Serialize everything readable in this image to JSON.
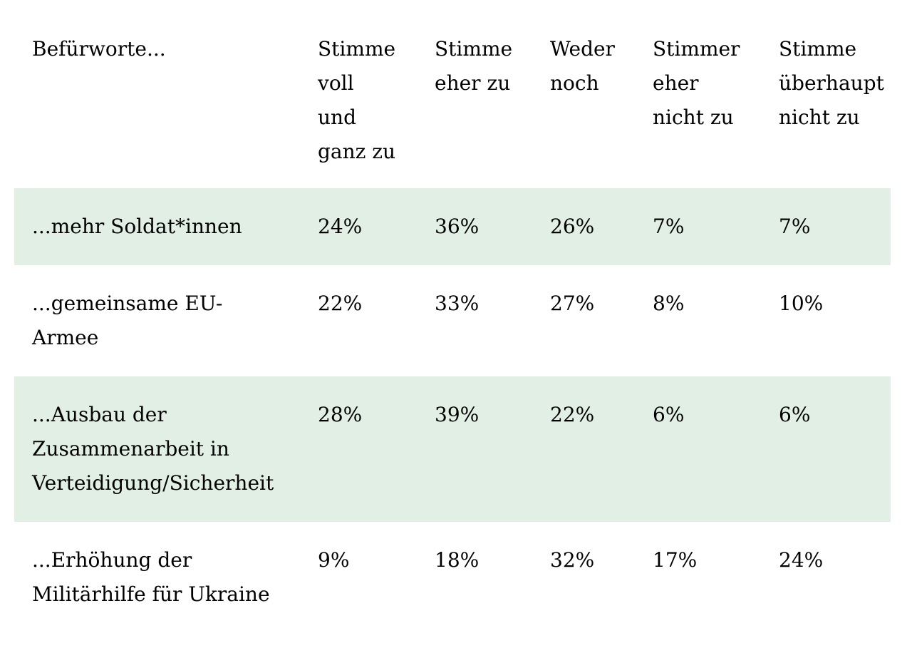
{
  "table": {
    "header": {
      "label": "Befürworte...",
      "cols": [
        "Stimme\nvoll\nund\nganz zu",
        "Stimme\neher zu",
        "Weder\nnoch",
        "Stimmer\neher\nnicht zu",
        "Stimme\nüberhaupt\nnicht zu"
      ]
    },
    "rows": [
      {
        "label": "...mehr Soldat*innen",
        "values": [
          "24%",
          "36%",
          "26%",
          "7%",
          "7%"
        ],
        "highlight": true
      },
      {
        "label": "...gemeinsame EU-\nArmee",
        "values": [
          "22%",
          "33%",
          "27%",
          "8%",
          "10%"
        ],
        "highlight": false
      },
      {
        "label": "...Ausbau der\nZusammenarbeit in\nVerteidigung/Sicherheit",
        "values": [
          "28%",
          "39%",
          "22%",
          "6%",
          "6%"
        ],
        "highlight": true
      },
      {
        "label": "...Erhöhung der\nMilitärhilfe für Ukraine",
        "values": [
          "9%",
          "18%",
          "32%",
          "17%",
          "24%"
        ],
        "highlight": false
      }
    ],
    "colors": {
      "highlight_bg": "#e1efe4",
      "text": "#000000",
      "background": "#ffffff"
    }
  },
  "chart_data": {
    "type": "table",
    "title": "",
    "row_header": "Befürworte...",
    "columns": [
      "Stimme voll und ganz zu",
      "Stimme eher zu",
      "Weder noch",
      "Stimmer eher nicht zu",
      "Stimme überhaupt nicht zu"
    ],
    "rows": [
      {
        "label": "...mehr Soldat*innen",
        "values_pct": [
          24,
          36,
          26,
          7,
          7
        ]
      },
      {
        "label": "...gemeinsame EU-Armee",
        "values_pct": [
          22,
          33,
          27,
          8,
          10
        ]
      },
      {
        "label": "...Ausbau der Zusammenarbeit in Verteidigung/Sicherheit",
        "values_pct": [
          28,
          39,
          22,
          6,
          6
        ]
      },
      {
        "label": "...Erhöhung der Militärhilfe für Ukraine",
        "values_pct": [
          9,
          18,
          32,
          17,
          24
        ]
      }
    ],
    "value_unit": "%",
    "layout": {
      "highlighted_row_indexes": [
        0,
        2
      ],
      "grid": false,
      "borders": false
    }
  }
}
